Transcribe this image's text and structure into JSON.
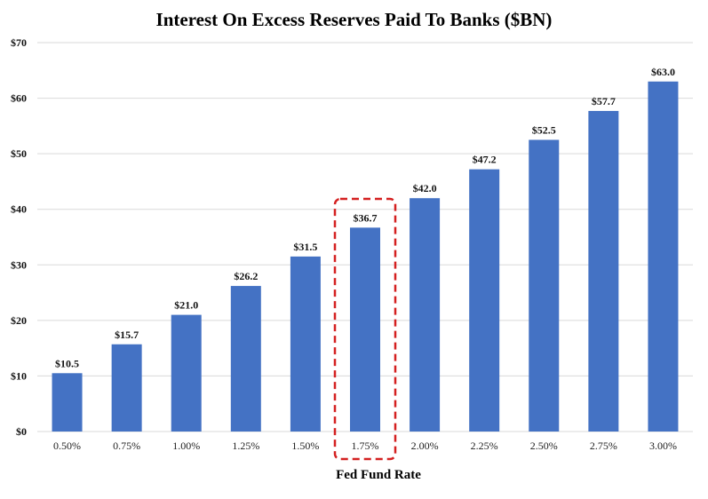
{
  "chart_data": {
    "type": "bar",
    "title": "Interest On Excess Reserves Paid To Banks ($BN)",
    "xlabel": "Fed Fund Rate",
    "ylabel": "",
    "categories": [
      "0.50%",
      "0.75%",
      "1.00%",
      "1.25%",
      "1.50%",
      "1.75%",
      "2.00%",
      "2.25%",
      "2.50%",
      "2.75%",
      "3.00%"
    ],
    "values": [
      10.5,
      15.7,
      21.0,
      26.2,
      31.5,
      36.7,
      42.0,
      47.2,
      52.5,
      57.7,
      63.0
    ],
    "data_labels": [
      "$10.5",
      "$15.7",
      "$21.0",
      "$26.2",
      "$31.5",
      "$36.7",
      "$42.0",
      "$47.2",
      "$52.5",
      "$57.7",
      "$63.0"
    ],
    "ylim": [
      0,
      70
    ],
    "yticks": [
      0,
      10,
      20,
      30,
      40,
      50,
      60,
      70
    ],
    "ytick_labels": [
      "$0",
      "$10",
      "$20",
      "$30",
      "$40",
      "$50",
      "$60",
      "$70"
    ],
    "grid": true,
    "bar_color": "#4472c4",
    "highlight": {
      "category": "1.75%",
      "style": "dashed-box",
      "color": "#d42020"
    }
  }
}
